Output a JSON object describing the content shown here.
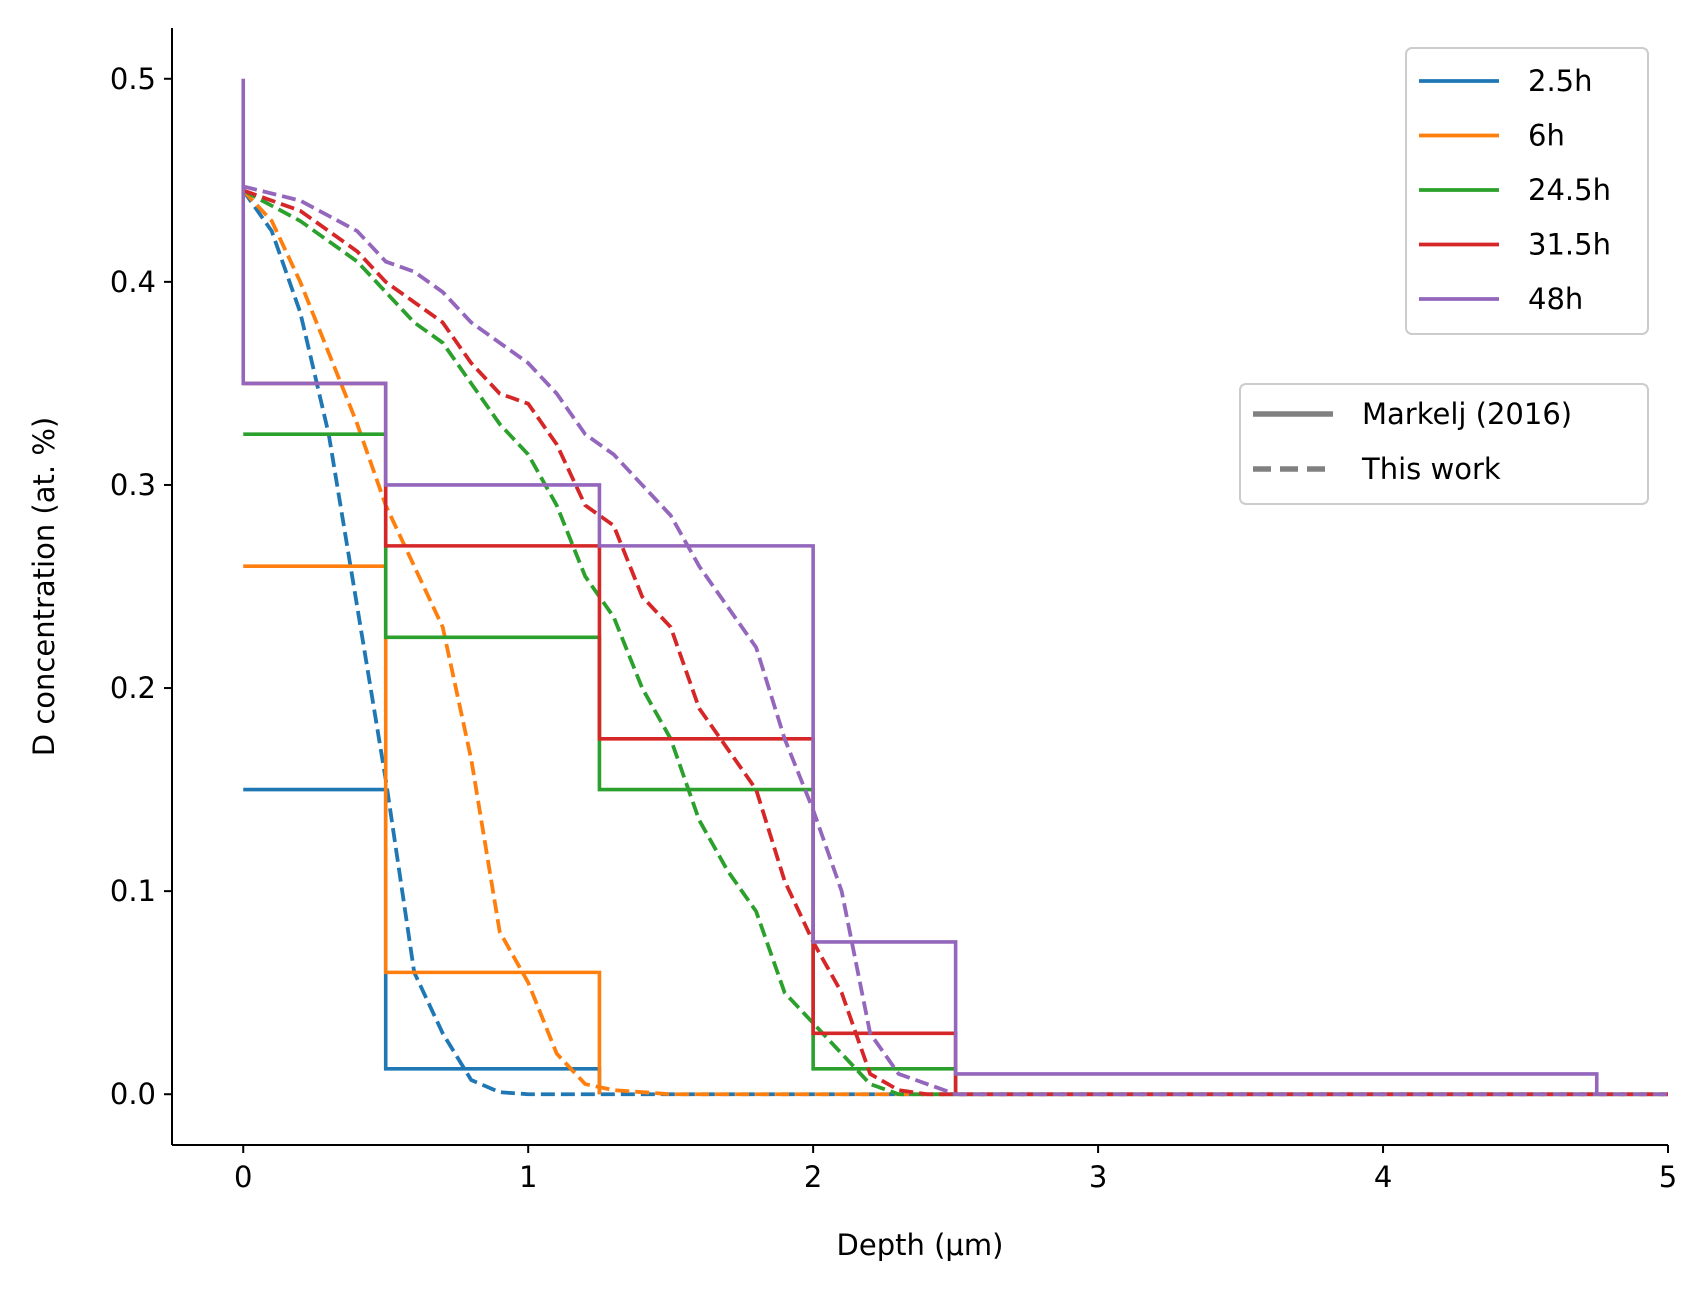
{
  "chart_data": {
    "type": "line",
    "title": "",
    "xlabel": "Depth (μm)",
    "ylabel": "D concentration (at. %)",
    "xlim": [
      -0.25,
      5.0
    ],
    "ylim": [
      -0.025,
      0.525
    ],
    "xticks": [
      {
        "value": 0,
        "label": "0"
      },
      {
        "value": 1,
        "label": "1"
      },
      {
        "value": 2,
        "label": "2"
      },
      {
        "value": 3,
        "label": "3"
      },
      {
        "value": 4,
        "label": "4"
      },
      {
        "value": 5,
        "label": "5"
      }
    ],
    "yticks": [
      {
        "value": 0.0,
        "label": "0.0"
      },
      {
        "value": 0.1,
        "label": "0.1"
      },
      {
        "value": 0.2,
        "label": "0.2"
      },
      {
        "value": 0.3,
        "label": "0.3"
      },
      {
        "value": 0.4,
        "label": "0.4"
      },
      {
        "value": 0.5,
        "label": "0.5"
      }
    ],
    "grid": false,
    "series": [
      {
        "name": "2.5h",
        "color": "#1f77b4",
        "markelj_steps": {
          "edges": [
            0,
            0.5,
            1.25
          ],
          "values": [
            0.15,
            0.0125
          ]
        },
        "this_work": {
          "x": [
            0,
            0.1,
            0.2,
            0.3,
            0.4,
            0.5,
            0.6,
            0.7,
            0.8,
            0.9,
            1.0,
            1.2,
            1.5,
            2,
            3,
            4,
            5
          ],
          "y": [
            0.445,
            0.425,
            0.385,
            0.325,
            0.24,
            0.155,
            0.06,
            0.03,
            0.007,
            0.001,
            0.0,
            0.0,
            0.0,
            0.0,
            0.0,
            0.0,
            0.0
          ]
        }
      },
      {
        "name": "6h",
        "color": "#ff7f0e",
        "markelj_steps": {
          "edges": [
            0,
            0.5,
            1.25
          ],
          "values": [
            0.26,
            0.06
          ]
        },
        "this_work": {
          "x": [
            0,
            0.1,
            0.2,
            0.3,
            0.4,
            0.5,
            0.6,
            0.7,
            0.8,
            0.9,
            1.0,
            1.1,
            1.2,
            1.3,
            1.5,
            2,
            3,
            4,
            5
          ],
          "y": [
            0.445,
            0.43,
            0.4,
            0.365,
            0.33,
            0.29,
            0.26,
            0.23,
            0.165,
            0.08,
            0.055,
            0.02,
            0.005,
            0.002,
            0.0,
            0.0,
            0.0,
            0.0,
            0.0
          ]
        }
      },
      {
        "name": "24.5h",
        "color": "#2ca02c",
        "markelj_steps": {
          "edges": [
            0,
            0.5,
            1.25,
            2.0,
            2.5
          ],
          "values": [
            0.325,
            0.225,
            0.15,
            0.0125
          ]
        },
        "this_work": {
          "x": [
            0,
            0.2,
            0.4,
            0.5,
            0.6,
            0.7,
            0.8,
            0.9,
            1.0,
            1.1,
            1.2,
            1.3,
            1.4,
            1.5,
            1.6,
            1.7,
            1.8,
            1.9,
            2.0,
            2.1,
            2.2,
            2.3,
            2.5,
            3,
            4,
            5
          ],
          "y": [
            0.445,
            0.43,
            0.41,
            0.395,
            0.38,
            0.37,
            0.35,
            0.33,
            0.315,
            0.29,
            0.255,
            0.235,
            0.2,
            0.175,
            0.135,
            0.11,
            0.09,
            0.05,
            0.035,
            0.02,
            0.005,
            0.0,
            0.0,
            0.0,
            0.0,
            0.0
          ]
        }
      },
      {
        "name": "31.5h",
        "color": "#d62728",
        "markelj_steps": {
          "edges": [
            0,
            0.5,
            1.25,
            2.0,
            2.5
          ],
          "values": [
            0.35,
            0.27,
            0.175,
            0.03
          ]
        },
        "this_work": {
          "x": [
            0,
            0.2,
            0.4,
            0.5,
            0.6,
            0.7,
            0.8,
            0.9,
            1.0,
            1.1,
            1.2,
            1.3,
            1.4,
            1.5,
            1.6,
            1.7,
            1.8,
            1.9,
            2.0,
            2.1,
            2.2,
            2.3,
            2.4,
            3,
            4,
            5
          ],
          "y": [
            0.445,
            0.435,
            0.415,
            0.4,
            0.39,
            0.38,
            0.36,
            0.345,
            0.34,
            0.32,
            0.29,
            0.28,
            0.245,
            0.23,
            0.19,
            0.17,
            0.15,
            0.105,
            0.075,
            0.05,
            0.01,
            0.002,
            0.0,
            0.0,
            0.0,
            0.0
          ]
        }
      },
      {
        "name": "48h",
        "color": "#9467bd",
        "markelj_steps": {
          "edges": [
            0,
            0.5,
            1.25,
            2.0,
            2.5,
            4.75
          ],
          "values": [
            0.35,
            0.3,
            0.27,
            0.075,
            0.01
          ],
          "start_top": 0.5
        },
        "this_work": {
          "x": [
            0,
            0.2,
            0.4,
            0.5,
            0.6,
            0.7,
            0.8,
            0.9,
            1.0,
            1.1,
            1.2,
            1.3,
            1.4,
            1.5,
            1.6,
            1.7,
            1.8,
            1.9,
            2.0,
            2.1,
            2.2,
            2.3,
            2.4,
            2.5,
            3,
            4,
            5
          ],
          "y": [
            0.447,
            0.44,
            0.425,
            0.41,
            0.405,
            0.395,
            0.38,
            0.37,
            0.36,
            0.345,
            0.325,
            0.315,
            0.3,
            0.285,
            0.26,
            0.24,
            0.22,
            0.175,
            0.14,
            0.1,
            0.03,
            0.01,
            0.005,
            0.0,
            0.0,
            0.0,
            0.0
          ]
        }
      }
    ],
    "legend_series": {
      "placement": "top-right",
      "entries": [
        "2.5h",
        "6h",
        "24.5h",
        "31.5h",
        "48h"
      ]
    },
    "legend_styles": {
      "placement": "right",
      "entries": [
        {
          "label": "Markelj (2016)",
          "style": "solid",
          "color": "#808080"
        },
        {
          "label": "This work",
          "style": "dashed",
          "color": "#808080"
        }
      ]
    }
  }
}
